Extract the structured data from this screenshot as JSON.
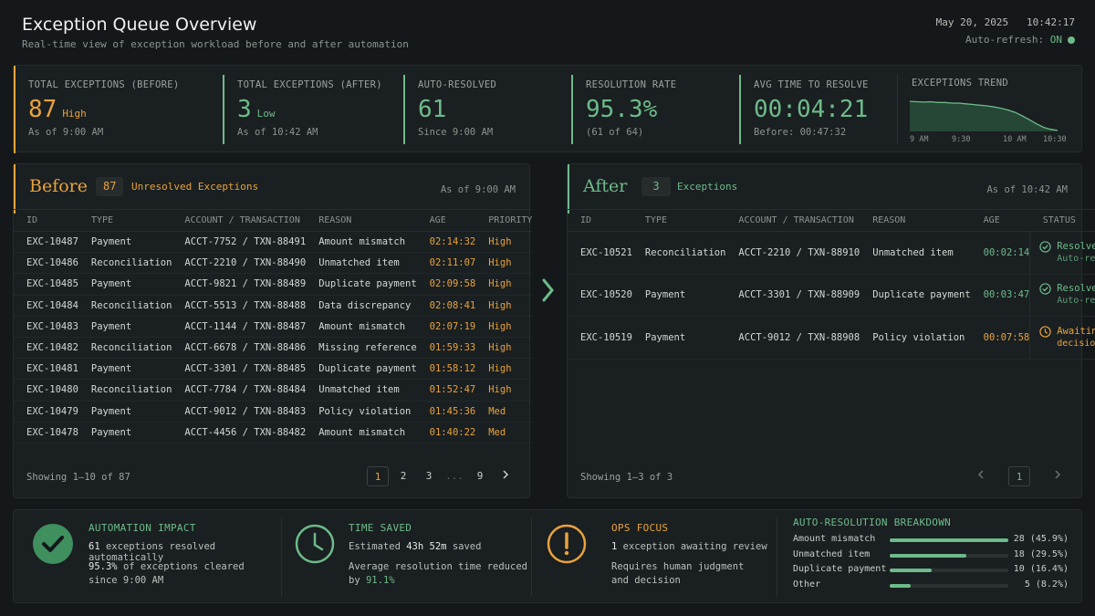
{
  "header": {
    "title": "Exception Queue Overview",
    "subtitle": "Real-time view of exception workload before and after automation",
    "date": "May 20, 2025",
    "time": "10:42:17",
    "auto_refresh_label": "Auto-refresh:",
    "auto_refresh_state": "ON"
  },
  "kpis": [
    {
      "label": "TOTAL EXCEPTIONS (BEFORE)",
      "value": "87",
      "tag": "High",
      "sub": "As of 9:00 AM",
      "color": "#e8a33d"
    },
    {
      "label": "TOTAL EXCEPTIONS (AFTER)",
      "value": "3",
      "tag": "Low",
      "sub": "As of 10:42 AM",
      "color": "#6dbb8a"
    },
    {
      "label": "AUTO-RESOLVED",
      "value": "61",
      "sub": "Since 9:00 AM",
      "color": "#6dbb8a"
    },
    {
      "label": "RESOLUTION RATE",
      "value": "95.3%",
      "sub": "(61 of 64)",
      "color": "#6dbb8a"
    },
    {
      "label": "AVG TIME TO RESOLVE",
      "value": "00:04:21",
      "sub": "Before: 00:47:32",
      "color": "#6dbb8a"
    }
  ],
  "trend": {
    "label": "EXCEPTIONS TREND",
    "ticks": [
      "9 AM",
      "9:30",
      "10 AM",
      "10:30"
    ],
    "values": [
      87,
      86,
      85,
      86,
      84,
      84,
      82,
      82,
      80,
      78,
      76,
      74,
      71,
      67,
      62,
      55,
      45,
      34,
      22,
      12,
      6,
      3
    ]
  },
  "before": {
    "title": "Before",
    "count": "87",
    "count_label": "Unresolved Exceptions",
    "as_of": "As of 9:00 AM",
    "columns": [
      "ID",
      "TYPE",
      "ACCOUNT / TRANSACTION",
      "REASON",
      "AGE",
      "PRIORITY"
    ],
    "rows": [
      [
        "EXC-10487",
        "Payment",
        "ACCT-7752 / TXN-88491",
        "Amount mismatch",
        "02:14:32",
        "High"
      ],
      [
        "EXC-10486",
        "Reconciliation",
        "ACCT-2210 / TXN-88490",
        "Unmatched item",
        "02:11:07",
        "High"
      ],
      [
        "EXC-10485",
        "Payment",
        "ACCT-9821 / TXN-88489",
        "Duplicate payment",
        "02:09:58",
        "High"
      ],
      [
        "EXC-10484",
        "Reconciliation",
        "ACCT-5513 / TXN-88488",
        "Data discrepancy",
        "02:08:41",
        "High"
      ],
      [
        "EXC-10483",
        "Payment",
        "ACCT-1144 / TXN-88487",
        "Amount mismatch",
        "02:07:19",
        "High"
      ],
      [
        "EXC-10482",
        "Reconciliation",
        "ACCT-6678 / TXN-88486",
        "Missing reference",
        "01:59:33",
        "High"
      ],
      [
        "EXC-10481",
        "Payment",
        "ACCT-3301 / TXN-88485",
        "Duplicate payment",
        "01:58:12",
        "High"
      ],
      [
        "EXC-10480",
        "Reconciliation",
        "ACCT-7784 / TXN-88484",
        "Unmatched item",
        "01:52:47",
        "High"
      ],
      [
        "EXC-10479",
        "Payment",
        "ACCT-9012 / TXN-88483",
        "Policy violation",
        "01:45:36",
        "Med"
      ],
      [
        "EXC-10478",
        "Payment",
        "ACCT-4456 / TXN-88482",
        "Amount mismatch",
        "01:40:22",
        "Med"
      ]
    ],
    "footer": "Showing 1–10 of 87",
    "pages": [
      "1",
      "2",
      "3",
      "...",
      "9"
    ]
  },
  "after": {
    "title": "After",
    "count": "3",
    "count_label": "Exceptions",
    "as_of": "As of 10:42 AM",
    "columns": [
      "ID",
      "TYPE",
      "ACCOUNT / TRANSACTION",
      "REASON",
      "AGE",
      "STATUS"
    ],
    "rows": [
      {
        "id": "EXC-10521",
        "type": "Reconciliation",
        "acct": "ACCT-2210 / TXN-88910",
        "reason": "Unmatched item",
        "age": "00:02:14",
        "status": "Resolved",
        "status_sub": "Auto-resolved",
        "kind": "resolved"
      },
      {
        "id": "EXC-10520",
        "type": "Payment",
        "acct": "ACCT-3301 / TXN-88909",
        "reason": "Duplicate payment",
        "age": "00:03:47",
        "status": "Resolved",
        "status_sub": "Auto-resolved",
        "kind": "resolved"
      },
      {
        "id": "EXC-10519",
        "type": "Payment",
        "acct": "ACCT-9012 / TXN-88908",
        "reason": "Policy violation",
        "age": "00:07:58",
        "status": "Awaiting ops",
        "status_sub": "decision",
        "kind": "pending"
      }
    ],
    "footer": "Showing 1–3 of 3",
    "page": "1"
  },
  "bottom": {
    "impact": {
      "title": "AUTOMATION IMPACT",
      "l1_num": "61",
      "l1_text": "exceptions resolved automatically",
      "l2_num": "95.3%",
      "l2_text": "of exceptions cleared",
      "l3": "since 9:00 AM"
    },
    "time": {
      "title": "TIME SAVED",
      "l1_pre": "Estimated",
      "l1_num": "43h 52m",
      "l1_post": "saved",
      "l2": "Average resolution time reduced",
      "l3_pre": "by",
      "l3_num": "91.1%"
    },
    "ops": {
      "title": "OPS FOCUS",
      "l1_num": "1",
      "l1_text": "exception awaiting review",
      "l2": "Requires human judgment",
      "l3": "and decision"
    },
    "breakdown": {
      "title": "AUTO-RESOLUTION BREAKDOWN",
      "items": [
        {
          "label": "Amount mismatch",
          "count": "28",
          "pct": "(45.9%)",
          "frac": 0.459
        },
        {
          "label": "Unmatched item",
          "count": "18",
          "pct": "(29.5%)",
          "frac": 0.295
        },
        {
          "label": "Duplicate payment",
          "count": "10",
          "pct": "(16.4%)",
          "frac": 0.164
        },
        {
          "label": "Other",
          "count": "5",
          "pct": "(8.2%)",
          "frac": 0.082
        }
      ]
    }
  },
  "colors": {
    "accent_before": "#e8a33d",
    "accent_after": "#6dbb8a",
    "background": "#14181a"
  }
}
